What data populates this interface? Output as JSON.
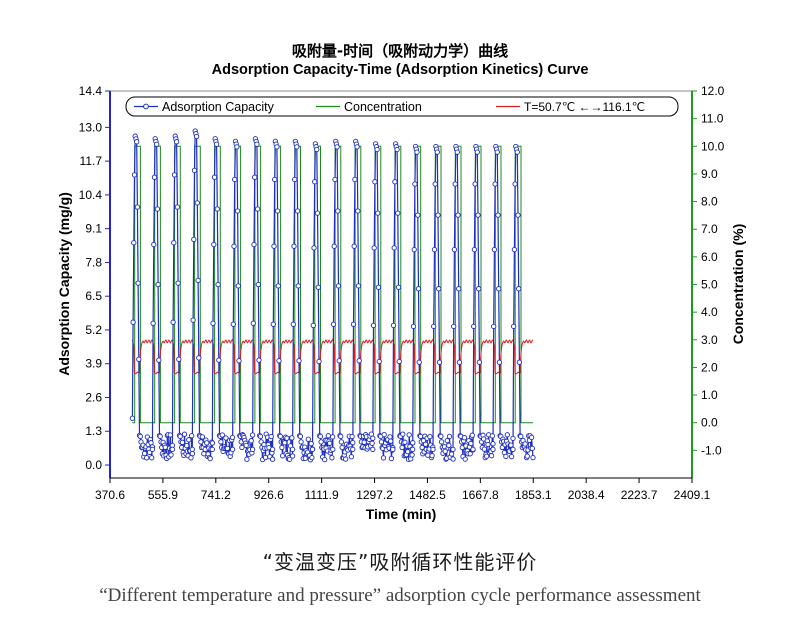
{
  "chart_data": {
    "type": "line",
    "title": "吸附量-时间（吸附动力学）曲线",
    "subtitle": "Adsorption Capacity-Time (Adsorption Kinetics) Curve",
    "xlabel": "Time (min)",
    "ylabel": "Adsorption Capacity (mg/g)",
    "y2label": "Concentration (%)",
    "xlim": [
      370.6,
      2409.1
    ],
    "ylim": [
      -0.5,
      14.4
    ],
    "y2lim": [
      -2.0,
      12.0
    ],
    "x_ticks": [
      "370.6",
      "555.9",
      "741.2",
      "926.6",
      "1111.9",
      "1297.2",
      "1482.5",
      "1667.8",
      "1853.1",
      "2038.4",
      "2223.7",
      "2409.1"
    ],
    "y_ticks": [
      "0.0",
      "1.3",
      "2.6",
      "3.9",
      "5.2",
      "6.5",
      "7.8",
      "9.1",
      "10.4",
      "11.7",
      "13.0",
      "14.4"
    ],
    "y2_ticks": [
      "-1.0",
      "0.0",
      "1.0",
      "2.0",
      "3.0",
      "4.0",
      "5.0",
      "6.0",
      "7.0",
      "8.0",
      "9.0",
      "10.0",
      "11.0",
      "12.0"
    ],
    "grid": false,
    "legend_position": "top",
    "series": [
      {
        "name": "Adsorption Capacity",
        "axis": "left",
        "color": "#1f2fbf",
        "marker": "circle",
        "description": "Cyclic rise to peak ~12.2-12.9 mg/g followed by drop to ~0.2-1.3 mg/g, 20 cycles",
        "cycle_starts": [
          449,
          519,
          589,
          659,
          729,
          800,
          870,
          940,
          1010,
          1080,
          1151,
          1221,
          1291,
          1361,
          1431,
          1502,
          1572,
          1642,
          1712,
          1782
        ],
        "cycle_peaks": [
          12.7,
          12.6,
          12.7,
          12.9,
          12.6,
          12.5,
          12.6,
          12.5,
          12.5,
          12.4,
          12.5,
          12.5,
          12.4,
          12.4,
          12.3,
          12.3,
          12.3,
          12.3,
          12.3,
          12.3
        ],
        "cycle_min": 0.2
      },
      {
        "name": "Concentration",
        "axis": "right",
        "color": "#1e8a1e",
        "shape": "square wave",
        "high": 10.0,
        "low": 0.0,
        "period": 70.2,
        "high_duration": 20
      },
      {
        "name": "T=50.7℃ ←→116.1℃",
        "axis": "right",
        "color": "#d62020",
        "description": "Temperature cycling drawn as scaled trace around 2.0-3.0 on right axis",
        "high": 3.0,
        "low": 1.8
      }
    ]
  },
  "caption": {
    "chinese": "“变温变压”吸附循环性能评价",
    "english": "“Different temperature and pressure” adsorption cycle performance assessment"
  }
}
